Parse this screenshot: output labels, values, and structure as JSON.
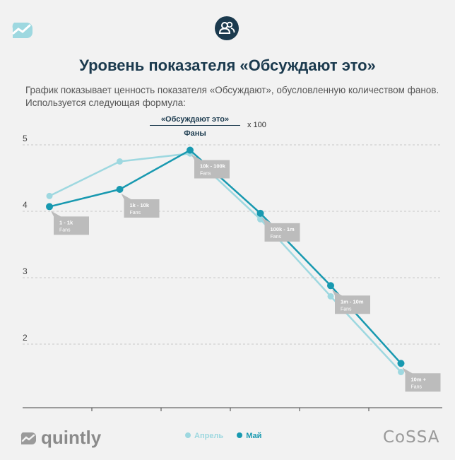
{
  "colors": {
    "april": "#9ed8e0",
    "may": "#1899b0",
    "title": "#1b3a4e",
    "label_bg": "#bcbcbc"
  },
  "header": {
    "icon": "users-icon",
    "title": "Уровень показателя «Обсуждают это»",
    "description": "График показывает ценность показателя «Обсуждают», обусловленную количеством фанов. Используется следующая формула:",
    "formula": {
      "numerator": "«Обсуждают это»",
      "denominator": "Фаны",
      "multiplier": "x 100"
    }
  },
  "footer": {
    "brand": "quintly",
    "partner": "CoSSA"
  },
  "chart_data": {
    "type": "line",
    "title": "",
    "xlabel": "",
    "ylabel": "",
    "categories": [
      "1 - 1k",
      "1k - 10k",
      "10k - 100k",
      "100k - 1m",
      "1m - 10m",
      "10m +"
    ],
    "category_unit": "Fans",
    "series": [
      {
        "name": "Апрель",
        "values": [
          4.23,
          4.75,
          4.87,
          3.88,
          2.72,
          1.58
        ]
      },
      {
        "name": "Май",
        "values": [
          4.07,
          4.33,
          4.92,
          3.97,
          2.88,
          1.71
        ]
      }
    ],
    "ylim": [
      1.1,
      5.3
    ],
    "yticks": [
      2,
      3,
      4,
      5
    ],
    "grid": true,
    "legend": "bottom-center"
  }
}
